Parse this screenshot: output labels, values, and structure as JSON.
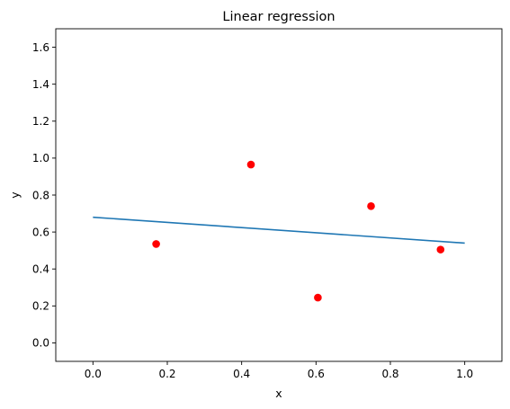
{
  "chart_data": {
    "type": "scatter",
    "title": "Linear regression",
    "xlabel": "x",
    "ylabel": "y",
    "xlim": [
      -0.1,
      1.1
    ],
    "ylim": [
      -0.1,
      1.7
    ],
    "xticks": [
      0.0,
      0.2,
      0.4,
      0.6,
      0.8,
      1.0
    ],
    "yticks": [
      0.0,
      0.2,
      0.4,
      0.6,
      0.8,
      1.0,
      1.2,
      1.4,
      1.6
    ],
    "xtick_labels": [
      "0.0",
      "0.2",
      "0.4",
      "0.6",
      "0.8",
      "1.0"
    ],
    "ytick_labels": [
      "0.0",
      "0.2",
      "0.4",
      "0.6",
      "0.8",
      "1.0",
      "1.2",
      "1.4",
      "1.6"
    ],
    "grid": false,
    "legend": false,
    "series": [
      {
        "type": "scatter",
        "color": "#ff0000",
        "x": [
          0.17,
          0.425,
          0.605,
          0.748,
          0.935
        ],
        "y": [
          0.535,
          0.965,
          0.245,
          0.74,
          0.505
        ]
      },
      {
        "type": "line",
        "color": "#1f77b4",
        "x": [
          0.0,
          1.0
        ],
        "y": [
          0.68,
          0.54
        ]
      }
    ]
  }
}
